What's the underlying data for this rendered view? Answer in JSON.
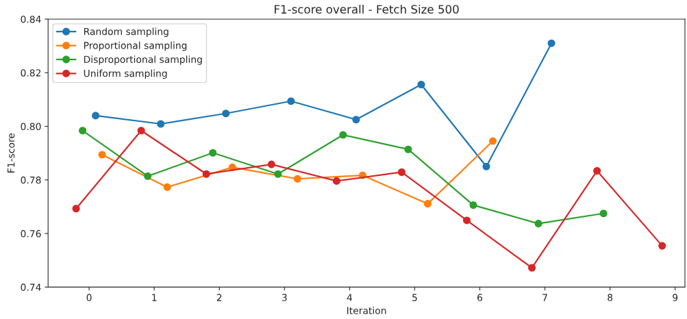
{
  "chart_data": {
    "type": "line",
    "title": "F1-score overall - Fetch Size 500",
    "xlabel": "Iteration",
    "ylabel": "F1-score",
    "xlim": [
      -0.63,
      9.15
    ],
    "xticks": [
      0,
      1,
      2,
      3,
      4,
      5,
      6,
      7,
      8,
      9
    ],
    "ylim": [
      0.74,
      0.84
    ],
    "yticks": [
      {
        "value": 0.74,
        "label": "0.74"
      },
      {
        "value": 0.76,
        "label": "0.76"
      },
      {
        "value": 0.78,
        "label": "0.78"
      },
      {
        "value": 0.8,
        "label": "0.80"
      },
      {
        "value": 0.82,
        "label": "0.82"
      },
      {
        "value": 0.84,
        "label": "0.84"
      }
    ],
    "grid": false,
    "legend": "top left",
    "marker": "circle",
    "line_style": "solid",
    "series": [
      {
        "name": "Random sampling",
        "color": "#1f77b4",
        "x": [
          0.1,
          1.1,
          2.1,
          3.1,
          4.1,
          5.1,
          6.1,
          7.1
        ],
        "values": [
          0.804,
          0.8009,
          0.8048,
          0.8094,
          0.8025,
          0.8156,
          0.785,
          0.831
        ]
      },
      {
        "name": "Proportional sampling",
        "color": "#ff7f0e",
        "x": [
          0.2,
          1.2,
          2.2,
          3.2,
          4.2,
          5.2,
          6.2
        ],
        "values": [
          0.7894,
          0.7773,
          0.7847,
          0.7804,
          0.7817,
          0.7711,
          0.7945
        ]
      },
      {
        "name": "Disproportional sampling",
        "color": "#2ca02c",
        "x": [
          -0.1,
          0.9,
          1.9,
          2.9,
          3.9,
          4.9,
          5.9,
          6.9,
          7.9
        ],
        "values": [
          0.7984,
          0.7814,
          0.7901,
          0.7822,
          0.7968,
          0.7914,
          0.7706,
          0.7637,
          0.7675
        ]
      },
      {
        "name": "Uniform sampling",
        "color": "#d62728",
        "x": [
          -0.2,
          0.8,
          1.8,
          2.8,
          3.8,
          4.8,
          5.8,
          6.8,
          7.8,
          8.8
        ],
        "values": [
          0.7693,
          0.7984,
          0.7822,
          0.7858,
          0.7796,
          0.7829,
          0.7649,
          0.7472,
          0.7834,
          0.7554
        ]
      }
    ]
  }
}
